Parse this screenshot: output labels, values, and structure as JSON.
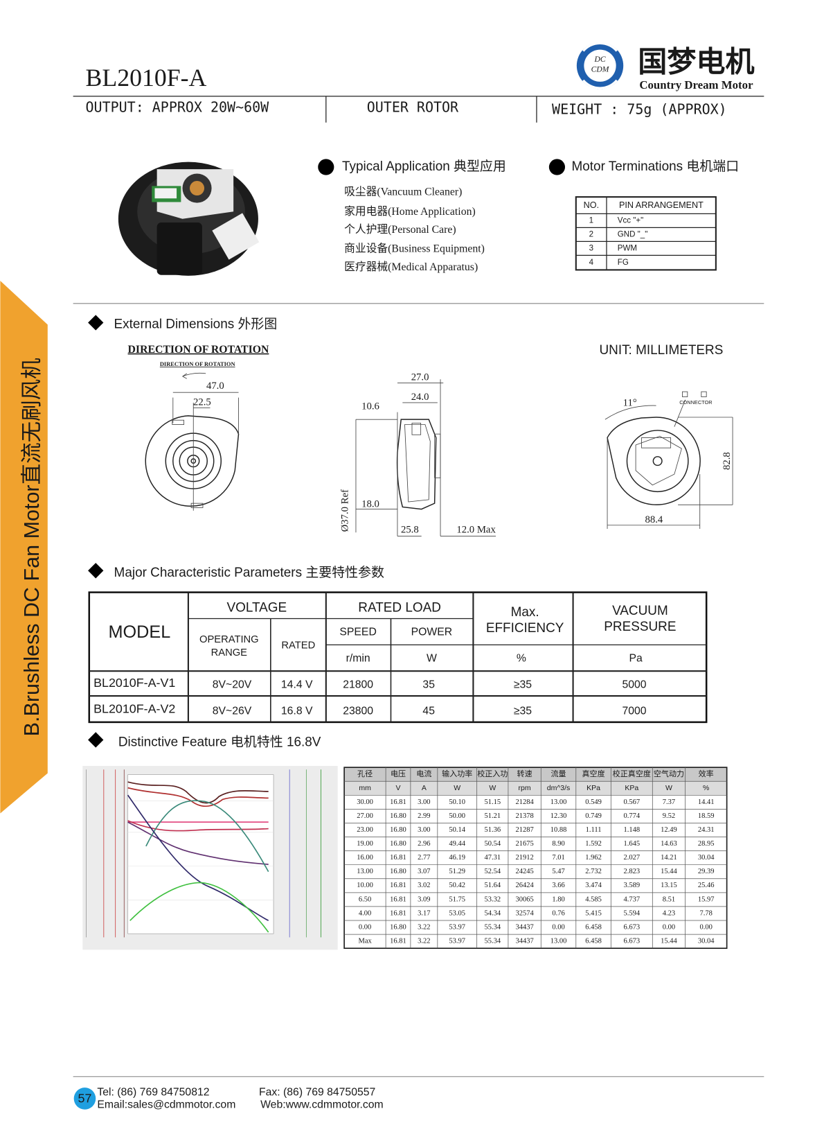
{
  "header": {
    "title": "BL2010F-A",
    "logo_badge": [
      "DC",
      "CDM"
    ],
    "logo_cn": "国梦电机",
    "logo_en": "Country Dream Motor",
    "output": "OUTPUT: APPROX 20W~60W",
    "rotor": "OUTER   ROTOR",
    "weight": "WEIGHT : 75g (APPROX)"
  },
  "side_tab": "B.Brushless DC Fan Motor直流无刷风机",
  "application": {
    "heading": "Typical Application  典型应用",
    "items": [
      "吸尘器(Vancuum Cleaner)",
      "家用电器(Home Application)",
      "个人护理(Personal Care)",
      "商业设备(Business Equipment)",
      "医疗器械(Medical Apparatus)"
    ]
  },
  "terminations": {
    "heading": "Motor Terminations  电机端口",
    "columns": [
      "NO.",
      "PIN ARRANGEMENT"
    ],
    "rows": [
      [
        "1",
        "Vcc \"+\""
      ],
      [
        "2",
        "GND \"_\""
      ],
      [
        "3",
        "PWM"
      ],
      [
        "4",
        "FG"
      ]
    ]
  },
  "dimensions": {
    "heading": "External Dimensions  外形图",
    "direction": "DIRECTION  OF  ROTATION",
    "unit": "UNIT: MILLIMETERS",
    "connector": "CONNECTOR",
    "labels": {
      "d47": "47.0",
      "d22": "22.5",
      "d27": "27.0",
      "d24": "24.0",
      "d10": "10.6",
      "d18": "18.0",
      "d37": "Ø37.0 Ref",
      "d25": "25.8",
      "d12": "12.0 Max",
      "angle": "11°",
      "d82": "82.8",
      "d88": "88.4"
    }
  },
  "parameters": {
    "heading": "Major  Characteristic Parameters  主要特性参数",
    "header": {
      "model": "MODEL",
      "voltage": "VOLTAGE",
      "operating_range": [
        "OPERATING",
        "RANGE"
      ],
      "rated": "RATED",
      "rated_load": "RATED LOAD",
      "speed": "SPEED",
      "power": "POWER",
      "efficiency": [
        "Max.",
        "EFFICIENCY"
      ],
      "vacuum": [
        "VACUUM",
        "PRESSURE"
      ]
    },
    "units": [
      "r/min",
      "W",
      "%",
      "Pa"
    ],
    "rows": [
      [
        "BL2010F-A-V1",
        "8V~20V",
        "14.4 V",
        "21800",
        "35",
        "≥35",
        "5000"
      ],
      [
        "BL2010F-A-V2",
        "8V~26V",
        "16.8 V",
        "23800",
        "45",
        "≥35",
        "7000"
      ]
    ]
  },
  "feature": {
    "heading": "Distinctive Feature 电机特性 16.8V",
    "columns": [
      "孔径",
      "电压",
      "电流",
      "输入功率",
      "校正入功",
      "转速",
      "流量",
      "真空度",
      "校正真空度",
      "空气动力",
      "效率"
    ],
    "units": [
      "mm",
      "V",
      "A",
      "W",
      "W",
      "rpm",
      "dm^3/s",
      "KPa",
      "KPa",
      "W",
      "%"
    ],
    "rows": [
      [
        "30.00",
        "16.81",
        "3.00",
        "50.10",
        "51.15",
        "21284",
        "13.00",
        "0.549",
        "0.567",
        "7.37",
        "14.41"
      ],
      [
        "27.00",
        "16.80",
        "2.99",
        "50.00",
        "51.21",
        "21378",
        "12.30",
        "0.749",
        "0.774",
        "9.52",
        "18.59"
      ],
      [
        "23.00",
        "16.80",
        "3.00",
        "50.14",
        "51.36",
        "21287",
        "10.88",
        "1.111",
        "1.148",
        "12.49",
        "24.31"
      ],
      [
        "19.00",
        "16.80",
        "2.96",
        "49.44",
        "50.54",
        "21675",
        "8.90",
        "1.592",
        "1.645",
        "14.63",
        "28.95"
      ],
      [
        "16.00",
        "16.81",
        "2.77",
        "46.19",
        "47.31",
        "21912",
        "7.01",
        "1.962",
        "2.027",
        "14.21",
        "30.04"
      ],
      [
        "13.00",
        "16.80",
        "3.07",
        "51.29",
        "52.54",
        "24245",
        "5.47",
        "2.732",
        "2.823",
        "15.44",
        "29.39"
      ],
      [
        "10.00",
        "16.81",
        "3.02",
        "50.42",
        "51.64",
        "26424",
        "3.66",
        "3.474",
        "3.589",
        "13.15",
        "25.46"
      ],
      [
        "6.50",
        "16.81",
        "3.09",
        "51.75",
        "53.32",
        "30065",
        "1.80",
        "4.585",
        "4.737",
        "8.51",
        "15.97"
      ],
      [
        "4.00",
        "16.81",
        "3.17",
        "53.05",
        "54.34",
        "32574",
        "0.76",
        "5.415",
        "5.594",
        "4.23",
        "7.78"
      ],
      [
        "0.00",
        "16.80",
        "3.22",
        "53.97",
        "55.34",
        "34437",
        "0.00",
        "6.458",
        "6.673",
        "0.00",
        "0.00"
      ],
      [
        "Max",
        "16.81",
        "3.22",
        "53.97",
        "55.34",
        "34437",
        "13.00",
        "6.458",
        "6.673",
        "15.44",
        "30.04"
      ]
    ]
  },
  "footer": {
    "page": "57",
    "tel": "Tel:  (86)  769  84750812",
    "fax": "Fax:  (86)  769  84750557",
    "email": "Email:sales@cdmmotor.com",
    "web": "Web:www.cdmmotor.com"
  }
}
